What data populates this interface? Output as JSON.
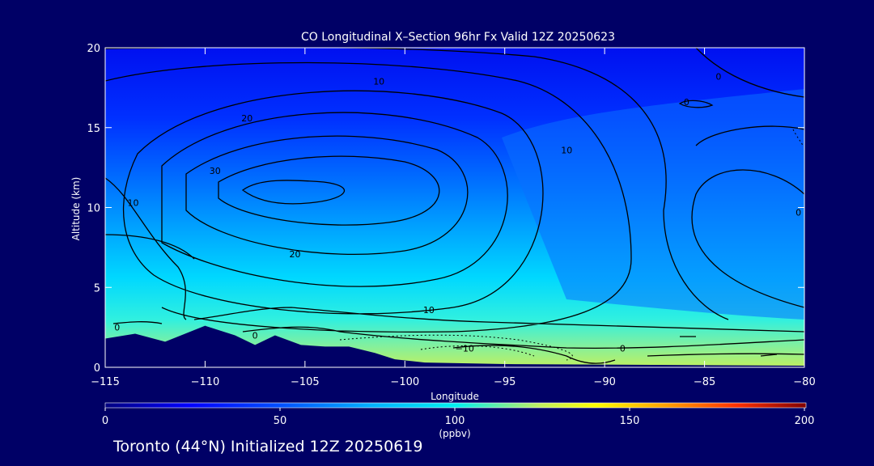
{
  "colors": {
    "background": "#000066",
    "contour": "#000000",
    "text": "#ffffff",
    "colorscale": [
      "#000080",
      "#0000ff",
      "#0050ff",
      "#00a0ff",
      "#00e0ff",
      "#60f0c0",
      "#d0f050",
      "#ffff00",
      "#ffa000",
      "#ff3000",
      "#d00000",
      "#800000"
    ]
  },
  "chart_data": {
    "type": "heatmap",
    "title": "CO Longitudinal X–Section 96hr  Fx Valid 12Z 20250623",
    "xlabel": "Longitude",
    "ylabel": "Altitude (km)",
    "xlim": [
      -115,
      -80
    ],
    "ylim": [
      0,
      20
    ],
    "xticks": [
      -115,
      -110,
      -105,
      -100,
      -95,
      -90,
      -85,
      -80
    ],
    "xtick_labels": [
      "−115",
      "−110",
      "−105",
      "−100",
      "−95",
      "−90",
      "−85",
      "−80"
    ],
    "yticks": [
      0,
      5,
      10,
      15,
      20
    ],
    "ytick_labels": [
      "0",
      "5",
      "10",
      "15",
      "20"
    ],
    "colorbar": {
      "range": [
        0,
        200
      ],
      "ticks": [
        0,
        50,
        100,
        150,
        200
      ],
      "tick_labels": [
        "0",
        "50",
        "100",
        "150",
        "200"
      ],
      "unit": "(ppbv)"
    },
    "fill_levels": [
      {
        "altitude_top": 20,
        "value": 20
      },
      {
        "altitude_top": 17.5,
        "value": 28
      },
      {
        "altitude_top": 15,
        "value": 35
      },
      {
        "altitude_top": 12,
        "value": 42
      },
      {
        "altitude_top": 9,
        "value": 55
      },
      {
        "altitude_top": 6,
        "value": 65
      },
      {
        "altitude_top": 3.5,
        "value": 75
      },
      {
        "altitude_top": 2,
        "value": 85
      }
    ],
    "contour_labels": [
      {
        "text": "10",
        "lon": -101.3,
        "alt": 17.9
      },
      {
        "text": "20",
        "lon": -107.9,
        "alt": 15.6
      },
      {
        "text": "30",
        "lon": -109.5,
        "alt": 12.3
      },
      {
        "text": "10",
        "lon": -113.6,
        "alt": 10.3
      },
      {
        "text": "20",
        "lon": -105.5,
        "alt": 7.1
      },
      {
        "text": "10",
        "lon": -98.8,
        "alt": 3.6
      },
      {
        "text": "10",
        "lon": -91.9,
        "alt": 13.6
      },
      {
        "text": "0",
        "lon": -84.3,
        "alt": 18.2
      },
      {
        "text": "0",
        "lon": -85.9,
        "alt": 16.6
      },
      {
        "text": "0",
        "lon": -80.3,
        "alt": 9.7
      },
      {
        "text": "0",
        "lon": -114.4,
        "alt": 2.5
      },
      {
        "text": "0",
        "lon": -107.5,
        "alt": 2.0
      },
      {
        "text": "−10",
        "lon": -97.0,
        "alt": 1.2
      },
      {
        "text": "0",
        "lon": -89.1,
        "alt": 1.2
      }
    ],
    "terrain": [
      {
        "lon": -115,
        "alt": 1.8
      },
      {
        "lon": -113.5,
        "alt": 2.1
      },
      {
        "lon": -112,
        "alt": 1.6
      },
      {
        "lon": -110,
        "alt": 2.6
      },
      {
        "lon": -108.5,
        "alt": 2.0
      },
      {
        "lon": -107.5,
        "alt": 1.4
      },
      {
        "lon": -106.5,
        "alt": 2.0
      },
      {
        "lon": -105.2,
        "alt": 1.4
      },
      {
        "lon": -104.0,
        "alt": 1.3
      },
      {
        "lon": -102.8,
        "alt": 1.3
      },
      {
        "lon": -101.5,
        "alt": 0.9
      },
      {
        "lon": -100.5,
        "alt": 0.5
      },
      {
        "lon": -99,
        "alt": 0.3
      },
      {
        "lon": -95,
        "alt": 0.2
      },
      {
        "lon": -80,
        "alt": 0.1
      }
    ]
  },
  "footer": {
    "text": "Toronto (44°N) Initialized 12Z 20250619"
  }
}
